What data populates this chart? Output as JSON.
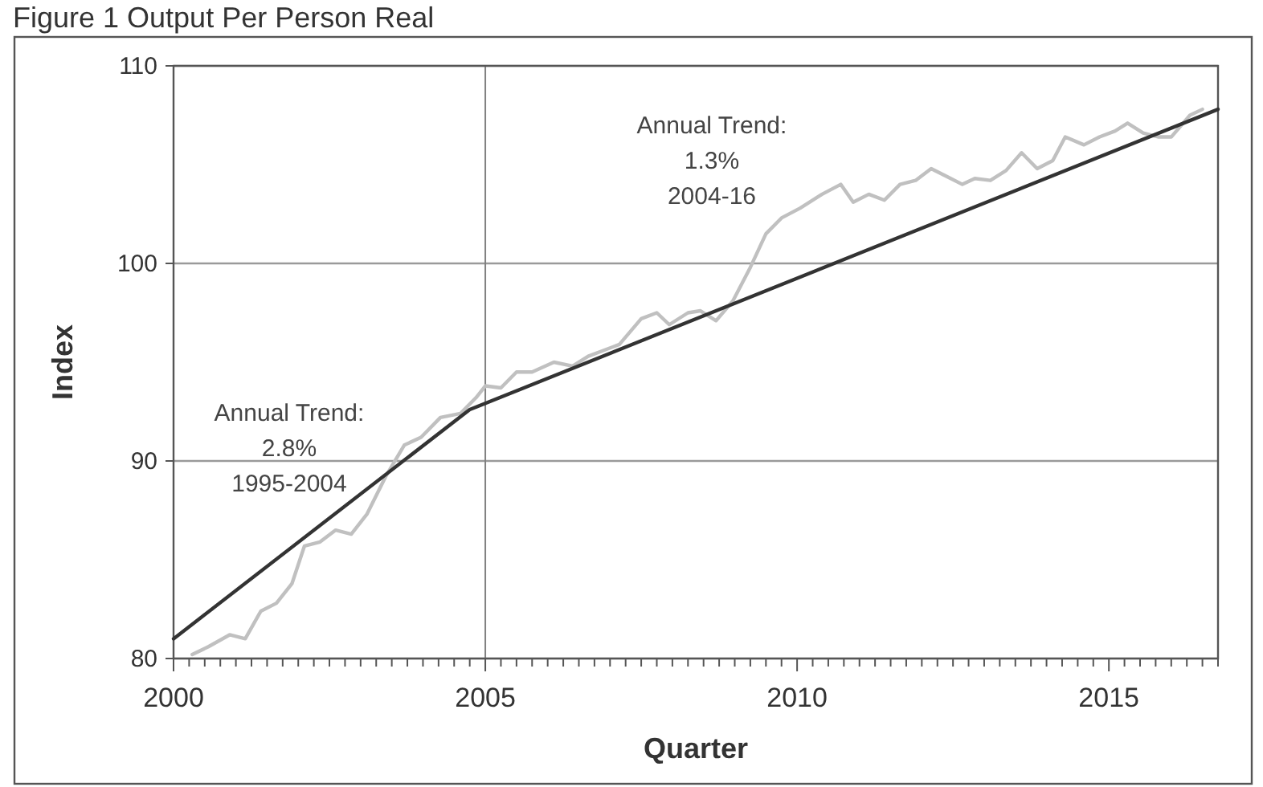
{
  "chart_data": {
    "type": "line",
    "title": "Figure 1 Output Per Person Real",
    "xlabel": "Quarter",
    "ylabel": "Index",
    "xlim": [
      2000,
      2016.75
    ],
    "ylim": [
      80,
      110
    ],
    "yticks": [
      80,
      90,
      100,
      110
    ],
    "xticks": [
      2000,
      {
        "value": 2000.25,
        "label": null
      },
      {
        "value": 2000.5,
        "label": null
      },
      {
        "value": 2000.75,
        "label": null
      },
      {
        "value": 2001,
        "label": null
      },
      {
        "value": 2001.25,
        "label": null
      },
      {
        "value": 2001.5,
        "label": null
      },
      {
        "value": 2001.75,
        "label": null
      },
      {
        "value": 2002,
        "label": null
      },
      {
        "value": 2002.25,
        "label": null
      },
      {
        "value": 2002.5,
        "label": null
      },
      {
        "value": 2002.75,
        "label": null
      },
      {
        "value": 2003,
        "label": null
      },
      {
        "value": 2003.25,
        "label": null
      },
      {
        "value": 2003.5,
        "label": null
      },
      {
        "value": 2003.75,
        "label": null
      },
      {
        "value": 2004,
        "label": null
      },
      {
        "value": 2004.25,
        "label": null
      },
      {
        "value": 2004.5,
        "label": null
      },
      {
        "value": 2004.75,
        "label": null
      },
      2005,
      {
        "value": 2005.25,
        "label": null
      },
      {
        "value": 2005.5,
        "label": null
      },
      {
        "value": 2005.75,
        "label": null
      },
      {
        "value": 2006,
        "label": null
      },
      {
        "value": 2006.25,
        "label": null
      },
      {
        "value": 2006.5,
        "label": null
      },
      {
        "value": 2006.75,
        "label": null
      },
      {
        "value": 2007,
        "label": null
      },
      {
        "value": 2007.25,
        "label": null
      },
      {
        "value": 2007.5,
        "label": null
      },
      {
        "value": 2007.75,
        "label": null
      },
      {
        "value": 2008,
        "label": null
      },
      {
        "value": 2008.25,
        "label": null
      },
      {
        "value": 2008.5,
        "label": null
      },
      {
        "value": 2008.75,
        "label": null
      },
      {
        "value": 2009,
        "label": null
      },
      {
        "value": 2009.25,
        "label": null
      },
      {
        "value": 2009.5,
        "label": null
      },
      {
        "value": 2009.75,
        "label": null
      },
      2010,
      {
        "value": 2010.25,
        "label": null
      },
      {
        "value": 2010.5,
        "label": null
      },
      {
        "value": 2010.75,
        "label": null
      },
      {
        "value": 2011,
        "label": null
      },
      {
        "value": 2011.25,
        "label": null
      },
      {
        "value": 2011.5,
        "label": null
      },
      {
        "value": 2011.75,
        "label": null
      },
      {
        "value": 2012,
        "label": null
      },
      {
        "value": 2012.25,
        "label": null
      },
      {
        "value": 2012.5,
        "label": null
      },
      {
        "value": 2012.75,
        "label": null
      },
      {
        "value": 2013,
        "label": null
      },
      {
        "value": 2013.25,
        "label": null
      },
      {
        "value": 2013.5,
        "label": null
      },
      {
        "value": 2013.75,
        "label": null
      },
      {
        "value": 2014,
        "label": null
      },
      {
        "value": 2014.25,
        "label": null
      },
      {
        "value": 2014.5,
        "label": null
      },
      {
        "value": 2014.75,
        "label": null
      },
      2015,
      {
        "value": 2015.25,
        "label": null
      },
      {
        "value": 2015.5,
        "label": null
      },
      {
        "value": 2015.75,
        "label": null
      },
      {
        "value": 2016,
        "label": null
      },
      {
        "value": 2016.25,
        "label": null
      },
      {
        "value": 2016.5,
        "label": null
      },
      {
        "value": 2016.75,
        "label": null
      }
    ],
    "grid": "y",
    "series": [
      {
        "color": "#c0c0c0",
        "x": [
          2000.3,
          2000.56,
          2000.9,
          2001.15,
          2001.4,
          2001.65,
          2001.9,
          2002.1,
          2002.35,
          2002.6,
          2002.85,
          2003.1,
          2003.4,
          2003.7,
          2003.97,
          2004.28,
          2004.6,
          2004.85,
          2005.0,
          2005.25,
          2005.5,
          2005.75,
          2006.1,
          2006.4,
          2006.65,
          2006.9,
          2007.15,
          2007.5,
          2007.75,
          2007.95,
          2008.25,
          2008.45,
          2008.7,
          2008.97,
          2009.25,
          2009.5,
          2009.75,
          2010.05,
          2010.4,
          2010.7,
          2010.9,
          2011.15,
          2011.4,
          2011.65,
          2011.9,
          2012.15,
          2012.4,
          2012.65,
          2012.85,
          2013.1,
          2013.35,
          2013.6,
          2013.85,
          2014.1,
          2014.3,
          2014.6,
          2014.85,
          2015.1,
          2015.3,
          2015.55,
          2015.8,
          2016.0,
          2016.3,
          2016.5
        ],
        "values": [
          80.2,
          80.6,
          81.2,
          81.0,
          82.4,
          82.8,
          83.8,
          85.7,
          85.9,
          86.5,
          86.3,
          87.3,
          89.2,
          90.8,
          91.2,
          92.2,
          92.4,
          93.2,
          93.8,
          93.7,
          94.5,
          94.5,
          95.0,
          94.8,
          95.3,
          95.6,
          95.9,
          97.2,
          97.5,
          96.9,
          97.5,
          97.6,
          97.1,
          98.1,
          99.8,
          101.5,
          102.3,
          102.8,
          103.5,
          104.0,
          103.1,
          103.5,
          103.2,
          104.0,
          104.2,
          104.8,
          104.4,
          104.0,
          104.3,
          104.2,
          104.7,
          105.6,
          104.8,
          105.2,
          106.4,
          106.0,
          106.4,
          106.7,
          107.1,
          106.6,
          106.4,
          106.4,
          107.5,
          107.8
        ]
      },
      {
        "color": "#333333",
        "x": [
          2000,
          2004.75,
          2016.75
        ],
        "values": [
          81.0,
          92.6,
          107.8
        ]
      }
    ],
    "ref_lines": [
      {
        "axis": "x",
        "value": 2005,
        "color": "#808080"
      }
    ],
    "annotations": [
      "Annual Trend:\n2.8%\n1995-2004",
      "Annual Trend:\n1.3%\n2004-16"
    ]
  }
}
